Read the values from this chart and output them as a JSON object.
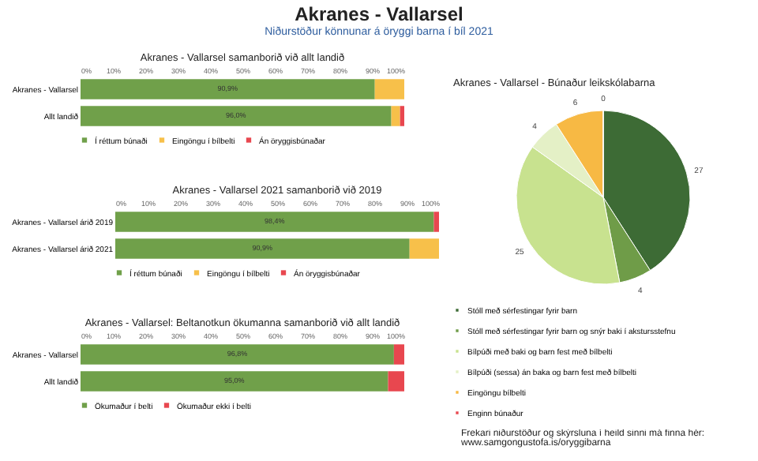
{
  "chart_data": [
    {
      "type": "other",
      "title": "Akranes - Vallarsel",
      "subtitle": "Niðurstöður könnunar á öryggi barna í bíl 2021"
    },
    {
      "type": "bar",
      "orientation": "horizontal",
      "stacked": true,
      "title": "Akranes - Vallarsel samanborið við allt landið",
      "categories": [
        "Akranes - Vallarsel",
        "Allt landið"
      ],
      "series": [
        {
          "name": "Í réttum búnaði",
          "color": "#70a04a",
          "values": [
            90.9,
            96.0
          ],
          "value_labels": [
            "90,9%",
            "96,0%"
          ]
        },
        {
          "name": "Eingöngu í bílbelti",
          "color": "#f7c04a",
          "values": [
            9.1,
            2.7
          ]
        },
        {
          "name": "Án öryggisbúnaðar",
          "color": "#e8474f",
          "values": [
            0,
            1.3
          ]
        }
      ],
      "xlim": [
        0,
        100
      ],
      "xticks": [
        {
          "value": 0,
          "label": "0%"
        },
        {
          "value": 10,
          "label": "10%"
        },
        {
          "value": 20,
          "label": "20%"
        },
        {
          "value": 30,
          "label": "30%"
        },
        {
          "value": 40,
          "label": "40%"
        },
        {
          "value": 50,
          "label": "50%"
        },
        {
          "value": 60,
          "label": "60%"
        },
        {
          "value": 70,
          "label": "70%"
        },
        {
          "value": 80,
          "label": "80%"
        },
        {
          "value": 90,
          "label": "90%"
        },
        {
          "value": 100,
          "label": "100%"
        }
      ],
      "legend": "bottom"
    },
    {
      "type": "bar",
      "orientation": "horizontal",
      "stacked": true,
      "title": "Akranes - Vallarsel 2021 samanborið við 2019",
      "categories": [
        "Akranes - Vallarsel árið 2019",
        "Akranes - Vallarsel árið 2021"
      ],
      "series": [
        {
          "name": "Í réttum búnaði",
          "color": "#70a04a",
          "values": [
            98.4,
            90.9
          ],
          "value_labels": [
            "98,4%",
            "90,9%"
          ]
        },
        {
          "name": "Eingöngu í bílbelti",
          "color": "#f7c04a",
          "values": [
            0,
            9.1
          ]
        },
        {
          "name": "Án öryggisbúnaðar",
          "color": "#e8474f",
          "values": [
            1.6,
            0
          ]
        }
      ],
      "xlim": [
        0,
        100
      ],
      "xticks": [
        {
          "value": 0,
          "label": "0%"
        },
        {
          "value": 10,
          "label": "10%"
        },
        {
          "value": 20,
          "label": "20%"
        },
        {
          "value": 30,
          "label": "30%"
        },
        {
          "value": 40,
          "label": "40%"
        },
        {
          "value": 50,
          "label": "50%"
        },
        {
          "value": 60,
          "label": "60%"
        },
        {
          "value": 70,
          "label": "70%"
        },
        {
          "value": 80,
          "label": "80%"
        },
        {
          "value": 90,
          "label": "90%"
        },
        {
          "value": 100,
          "label": "100%"
        }
      ],
      "legend": "bottom"
    },
    {
      "type": "bar",
      "orientation": "horizontal",
      "stacked": true,
      "title": "Akranes - Vallarsel: Beltanotkun ökumanna samanborið við allt landið",
      "categories": [
        "Akranes - Vallarsel",
        "Allt landið"
      ],
      "series": [
        {
          "name": "Ökumaður í belti",
          "color": "#70a04a",
          "values": [
            96.8,
            95.0
          ],
          "value_labels": [
            "96,8%",
            "95,0%"
          ]
        },
        {
          "name": "Ökumaður ekki í belti",
          "color": "#e8474f",
          "values": [
            3.2,
            5.0
          ]
        }
      ],
      "xlim": [
        0,
        100
      ],
      "xticks": [
        {
          "value": 0,
          "label": "0%"
        },
        {
          "value": 10,
          "label": "10%"
        },
        {
          "value": 20,
          "label": "20%"
        },
        {
          "value": 30,
          "label": "30%"
        },
        {
          "value": 40,
          "label": "40%"
        },
        {
          "value": 50,
          "label": "50%"
        },
        {
          "value": 60,
          "label": "60%"
        },
        {
          "value": 70,
          "label": "70%"
        },
        {
          "value": 80,
          "label": "80%"
        },
        {
          "value": 90,
          "label": "90%"
        },
        {
          "value": 100,
          "label": "100%"
        }
      ],
      "legend": "bottom"
    },
    {
      "type": "pie",
      "title": "Akranes - Vallarsel - Búnaður leikskólabarna",
      "categories": [
        "Stóll með sérfestingar fyrir barn",
        "Stóll með sérfestingar fyrir barn og snýr baki í akstursstefnu",
        "Bílpúði með baki og barn fest með bílbelti",
        "Bílpúði (sessa) án baka og barn fest með bílbelti",
        "Eingöngu bílbelti",
        "Enginn búnaður"
      ],
      "values": [
        27,
        4,
        25,
        4,
        6,
        0
      ],
      "colors": [
        "#3d6b35",
        "#6f9c48",
        "#c8e28f",
        "#e4f0c6",
        "#f7b944",
        "#e8474f"
      ],
      "value_labels": [
        "27",
        "4",
        "25",
        "4",
        "6",
        "0"
      ],
      "legend": "bottom",
      "annotations": [
        "Frekari niðurstöður og skýrsluna í heild sinni má finna hér:",
        "www.samgongustofa.is/oryggibarna"
      ]
    }
  ]
}
